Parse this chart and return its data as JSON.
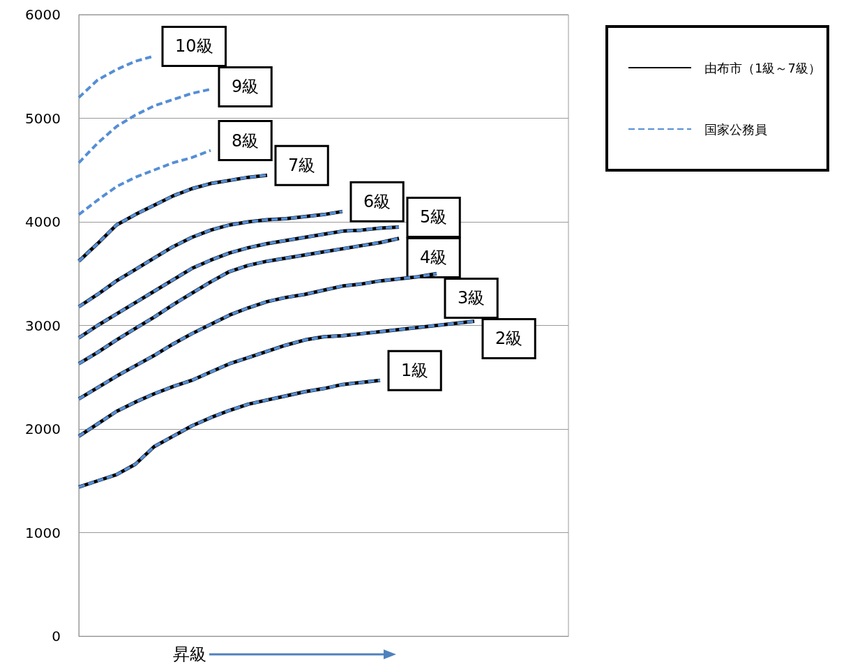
{
  "chart_data": {
    "type": "line",
    "xlabel": "昇級",
    "categories": [
      null,
      null,
      null,
      null,
      null,
      null,
      null,
      null,
      null,
      null,
      null,
      null,
      null,
      null,
      null,
      null,
      null,
      null,
      null,
      null,
      null,
      null,
      null,
      null,
      null,
      null,
      null
    ],
    "ylim": [
      0,
      6000
    ],
    "yticks": [
      0,
      1000,
      2000,
      3000,
      4000,
      5000,
      6000
    ],
    "grid": "y",
    "legend": "top right",
    "marker": "none",
    "tick_labels": "y",
    "series": [
      {
        "name": "由布市（1級～7級）",
        "color": "#000000",
        "line_style": "solid",
        "values": [
          1440,
          1500,
          1560,
          1660,
          1830,
          1930,
          2030,
          2110,
          2180,
          2240,
          2280,
          2320,
          2360,
          2390,
          2430,
          2450,
          2470,
          null,
          null,
          null,
          null,
          null,
          null,
          null,
          null,
          null,
          null
        ]
      },
      {
        "color": "#000000",
        "line_style": "solid",
        "values": [
          1930,
          2050,
          2170,
          2260,
          2340,
          2410,
          2470,
          2550,
          2630,
          2690,
          2750,
          2810,
          2860,
          2890,
          2900,
          2920,
          2940,
          2960,
          2980,
          3000,
          3020,
          3040,
          null,
          null,
          null,
          null,
          null
        ]
      },
      {
        "color": "#000000",
        "line_style": "solid",
        "values": [
          2290,
          2400,
          2510,
          2610,
          2710,
          2820,
          2920,
          3010,
          3100,
          3170,
          3230,
          3270,
          3300,
          3340,
          3380,
          3400,
          3430,
          3450,
          3470,
          3500,
          null,
          null,
          null,
          null,
          null,
          null,
          null
        ]
      },
      {
        "color": "#000000",
        "line_style": "solid",
        "values": [
          2630,
          2740,
          2860,
          2970,
          3080,
          3200,
          3310,
          3420,
          3520,
          3580,
          3620,
          3650,
          3680,
          3710,
          3740,
          3770,
          3800,
          3840,
          null,
          null,
          null,
          null,
          null,
          null,
          null,
          null,
          null
        ]
      },
      {
        "color": "#000000",
        "line_style": "solid",
        "values": [
          2880,
          3000,
          3110,
          3220,
          3330,
          3440,
          3550,
          3630,
          3700,
          3750,
          3790,
          3820,
          3850,
          3880,
          3910,
          3920,
          3940,
          3950,
          null,
          null,
          null,
          null,
          null,
          null,
          null,
          null,
          null
        ]
      },
      {
        "color": "#000000",
        "line_style": "solid",
        "values": [
          3180,
          3300,
          3430,
          3540,
          3650,
          3760,
          3850,
          3920,
          3970,
          4000,
          4020,
          4030,
          4050,
          4070,
          4100,
          null,
          null,
          null,
          null,
          null,
          null,
          null,
          null,
          null,
          null,
          null,
          null
        ]
      },
      {
        "color": "#000000",
        "line_style": "solid",
        "values": [
          3620,
          3790,
          3970,
          4070,
          4160,
          4250,
          4320,
          4370,
          4400,
          4430,
          4450,
          null,
          null,
          null,
          null,
          null,
          null,
          null,
          null,
          null,
          null,
          null,
          null,
          null,
          null,
          null,
          null
        ]
      },
      {
        "name": "国家公務員",
        "color": "#558ed5",
        "line_style": "dashed",
        "values": [
          1440,
          1500,
          1560,
          1660,
          1830,
          1930,
          2030,
          2110,
          2180,
          2240,
          2280,
          2320,
          2360,
          2390,
          2430,
          2450,
          2470,
          null,
          null,
          null,
          null,
          null,
          null,
          null,
          null,
          null,
          null
        ]
      },
      {
        "color": "#558ed5",
        "line_style": "dashed",
        "values": [
          1930,
          2050,
          2170,
          2260,
          2340,
          2410,
          2470,
          2550,
          2630,
          2690,
          2750,
          2810,
          2860,
          2890,
          2900,
          2920,
          2940,
          2960,
          2980,
          3000,
          3020,
          3040,
          null,
          null,
          null,
          null,
          null
        ]
      },
      {
        "color": "#558ed5",
        "line_style": "dashed",
        "values": [
          2290,
          2400,
          2510,
          2610,
          2710,
          2820,
          2920,
          3010,
          3100,
          3170,
          3230,
          3270,
          3300,
          3340,
          3380,
          3400,
          3430,
          3450,
          3470,
          3500,
          null,
          null,
          null,
          null,
          null,
          null,
          null
        ]
      },
      {
        "color": "#558ed5",
        "line_style": "dashed",
        "values": [
          2630,
          2740,
          2860,
          2970,
          3080,
          3200,
          3310,
          3420,
          3520,
          3580,
          3620,
          3650,
          3680,
          3710,
          3740,
          3770,
          3800,
          3840,
          null,
          null,
          null,
          null,
          null,
          null,
          null,
          null,
          null
        ]
      },
      {
        "color": "#558ed5",
        "line_style": "dashed",
        "values": [
          2880,
          3000,
          3110,
          3220,
          3330,
          3440,
          3550,
          3630,
          3700,
          3750,
          3790,
          3820,
          3850,
          3880,
          3910,
          3920,
          3940,
          3950,
          null,
          null,
          null,
          null,
          null,
          null,
          null,
          null,
          null
        ]
      },
      {
        "color": "#558ed5",
        "line_style": "dashed",
        "values": [
          3180,
          3300,
          3430,
          3540,
          3650,
          3760,
          3850,
          3920,
          3970,
          4000,
          4020,
          4030,
          4050,
          4070,
          4100,
          null,
          null,
          null,
          null,
          null,
          null,
          null,
          null,
          null,
          null,
          null,
          null
        ]
      },
      {
        "color": "#558ed5",
        "line_style": "dashed",
        "values": [
          3620,
          3790,
          3970,
          4070,
          4160,
          4250,
          4320,
          4370,
          4400,
          4430,
          4450,
          null,
          null,
          null,
          null,
          null,
          null,
          null,
          null,
          null,
          null,
          null,
          null,
          null,
          null,
          null,
          null
        ]
      },
      {
        "color": "#558ed5",
        "line_style": "dashed",
        "values": [
          4070,
          4210,
          4340,
          4430,
          4500,
          4570,
          4620,
          4690,
          null,
          null,
          null,
          null,
          null,
          null,
          null,
          null,
          null,
          null,
          null,
          null,
          null,
          null,
          null,
          null,
          null,
          null,
          null
        ]
      },
      {
        "color": "#558ed5",
        "line_style": "dashed",
        "values": [
          4570,
          4760,
          4920,
          5030,
          5120,
          5180,
          5240,
          5280,
          null,
          null,
          null,
          null,
          null,
          null,
          null,
          null,
          null,
          null,
          null,
          null,
          null,
          null,
          null,
          null,
          null,
          null,
          null
        ]
      },
      {
        "color": "#558ed5",
        "line_style": "dashed",
        "values": [
          5200,
          5370,
          5470,
          5550,
          5600,
          null,
          null,
          null,
          null,
          null,
          null,
          null,
          null,
          null,
          null,
          null,
          null,
          null,
          null,
          null,
          null,
          null,
          null,
          null,
          null,
          null,
          null
        ]
      }
    ],
    "annotations": [
      "1級",
      "2級",
      "3級",
      "4級",
      "5級",
      "6級",
      "7級",
      "8級",
      "9級",
      "10級"
    ]
  }
}
